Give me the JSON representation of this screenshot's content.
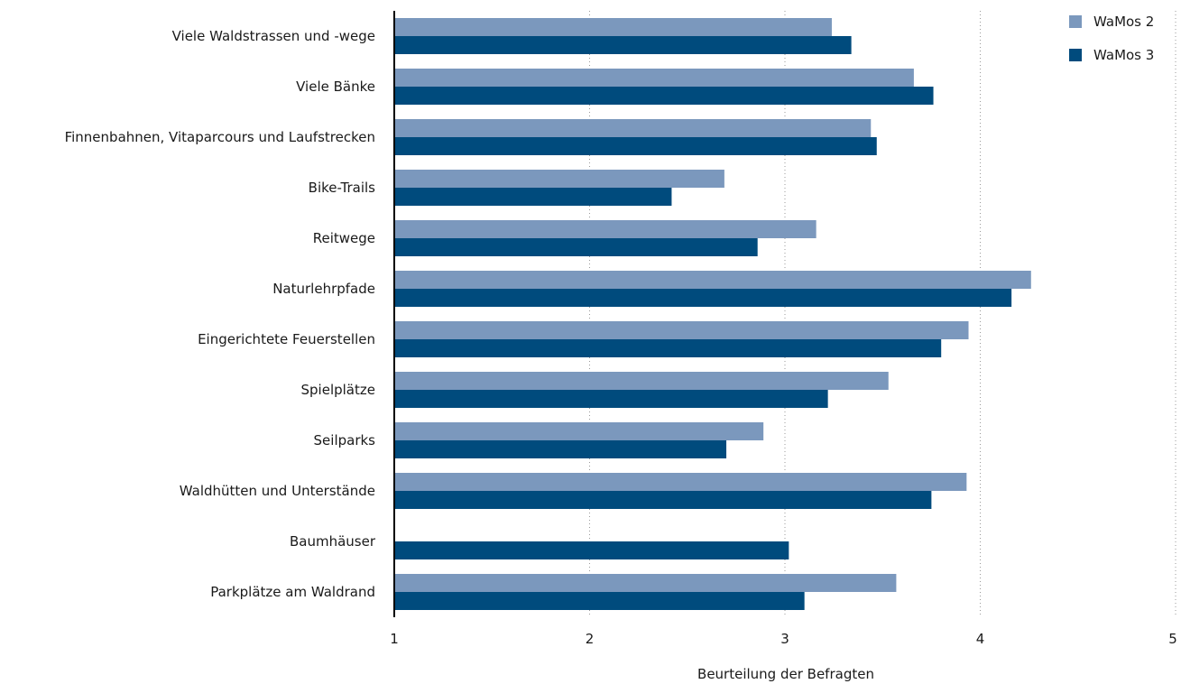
{
  "chart_data": {
    "type": "bar",
    "orientation": "horizontal",
    "categories": [
      "Viele Waldstrassen und -wege",
      "Viele Bänke",
      "Finnenbahnen, Vitaparcours und Laufstrecken",
      "Bike-Trails",
      "Reitwege",
      "Naturlehrpfade",
      "Eingerichtete Feuerstellen",
      "Spielplätze",
      "Seilparks",
      "Waldhütten und Unterstände",
      "Baumhäuser",
      "Parkplätze am Waldrand"
    ],
    "series": [
      {
        "name": "WaMos 2",
        "color": "#7b98bd",
        "values": [
          3.24,
          3.66,
          3.44,
          2.69,
          3.16,
          4.26,
          3.94,
          3.53,
          2.89,
          3.93,
          null,
          3.57
        ]
      },
      {
        "name": "WaMos 3",
        "color": "#004b7d",
        "values": [
          3.34,
          3.76,
          3.47,
          2.42,
          2.86,
          4.16,
          3.8,
          3.22,
          2.7,
          3.75,
          3.02,
          3.1
        ]
      }
    ],
    "xlabel": "Beurteilung der Befragten",
    "xlim": [
      1,
      5
    ],
    "xticks": [
      "1",
      "2",
      "3",
      "4",
      "5"
    ],
    "grid": "vertical dotted",
    "legend": "top-right"
  }
}
